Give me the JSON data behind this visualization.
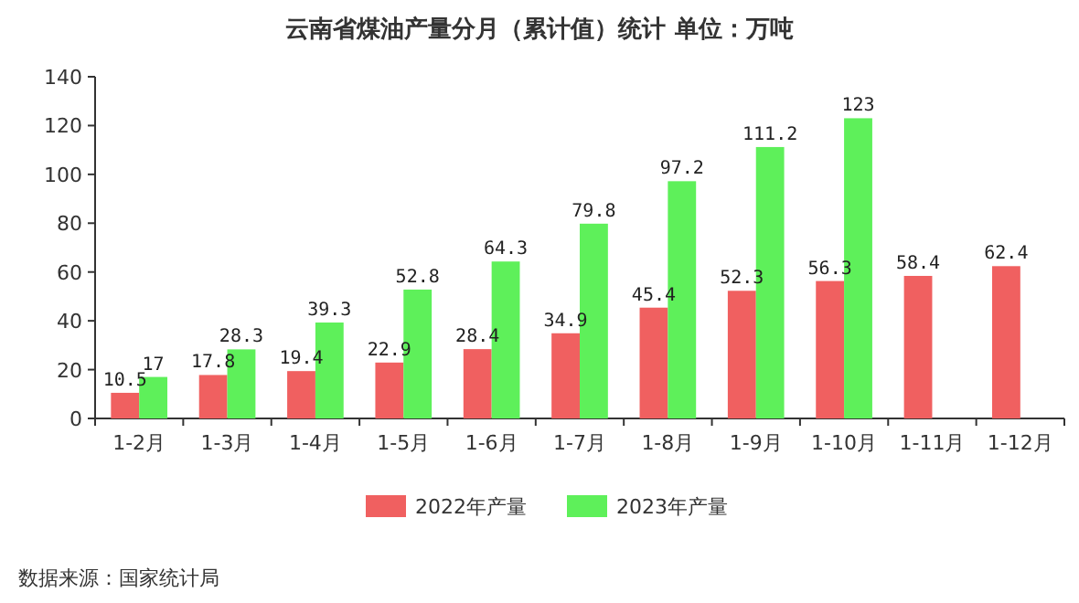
{
  "chart_data": {
    "type": "bar",
    "title": "云南省煤油产量分月（累计值）统计  单位：万吨",
    "categories": [
      "1-2月",
      "1-3月",
      "1-4月",
      "1-5月",
      "1-6月",
      "1-7月",
      "1-8月",
      "1-9月",
      "1-10月",
      "1-11月",
      "1-12月"
    ],
    "series": [
      {
        "name": "2022年产量",
        "color": "#f06060",
        "values": [
          10.5,
          17.8,
          19.4,
          22.9,
          28.4,
          34.9,
          45.4,
          52.3,
          56.3,
          58.4,
          62.4
        ]
      },
      {
        "name": "2023年产量",
        "color": "#5ef05a",
        "values": [
          17,
          28.3,
          39.3,
          52.8,
          64.3,
          79.8,
          97.2,
          111.2,
          123,
          null,
          null
        ]
      }
    ],
    "ylim": [
      0,
      140
    ],
    "yticks": [
      0,
      20,
      40,
      60,
      80,
      100,
      120,
      140
    ],
    "data_labels": true,
    "legend": "bottom",
    "grid": false,
    "annotations": [
      "数据来源：国家统计局"
    ]
  }
}
